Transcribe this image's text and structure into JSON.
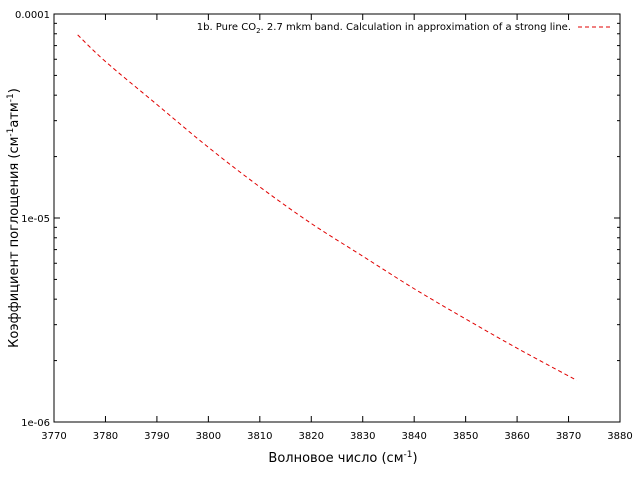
{
  "chart_data": {
    "type": "line",
    "xlabel": {
      "main": "Волновое число (см",
      "sup": "-1",
      "tail": ")"
    },
    "ylabel": {
      "p1": "Коэффициент поглощения (см",
      "s1": "-1",
      "p2": "атм",
      "s2": "-1",
      "p3": ")"
    },
    "xlim": [
      3770,
      3880
    ],
    "ylim": [
      1e-06,
      0.0001
    ],
    "yscale": "log",
    "x_ticks": [
      3770,
      3780,
      3790,
      3800,
      3810,
      3820,
      3830,
      3840,
      3850,
      3860,
      3870,
      3880
    ],
    "x_tick_labels": [
      "3770",
      "3780",
      "3790",
      "3800",
      "3810",
      "3820",
      "3830",
      "3840",
      "3850",
      "3860",
      "3870",
      "3880"
    ],
    "y_ticks": [
      1e-06,
      1e-05,
      0.0001
    ],
    "y_tick_labels": [
      "1e-06",
      "1e-05",
      "0.0001"
    ],
    "grid": false,
    "legend_position": "top-right",
    "series": [
      {
        "name": {
          "a": "1b. Pure CO",
          "sub": "2",
          "b": ". 2.7 mkm band. Calculation in approximation of a strong line."
        },
        "color": "#e00000",
        "dash": "dashed",
        "x": [
          3774.6,
          3780,
          3790,
          3800,
          3810,
          3820,
          3830,
          3840,
          3850,
          3860,
          3871.6
        ],
        "y": [
          7.9e-05,
          5.85e-05,
          3.6e-05,
          2.22e-05,
          1.42e-05,
          9.4e-06,
          6.5e-06,
          4.5e-06,
          3.2e-06,
          2.3e-06,
          1.6e-06
        ]
      }
    ]
  }
}
